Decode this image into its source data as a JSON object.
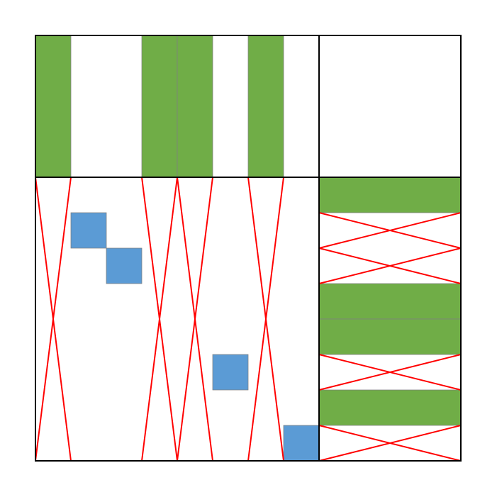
{
  "diagram": {
    "grid_size": 12,
    "split_index": 8,
    "colors": {
      "green": "#70AD47",
      "blue": "#5B9BD5",
      "cross": "#FF0000",
      "frame": "#000000",
      "cell_border": "#7F7F7F"
    },
    "green_columns": [
      0,
      3,
      4,
      6
    ],
    "green_rows": [
      0,
      3,
      4,
      6
    ],
    "blue_cells": [
      {
        "row": 1,
        "col": 1
      },
      {
        "row": 2,
        "col": 2
      },
      {
        "row": 5,
        "col": 5
      },
      {
        "row": 7,
        "col": 7
      }
    ],
    "crossed_columns": [
      0,
      3,
      4,
      6
    ],
    "crossed_rows": [
      1,
      2,
      5,
      7
    ]
  }
}
